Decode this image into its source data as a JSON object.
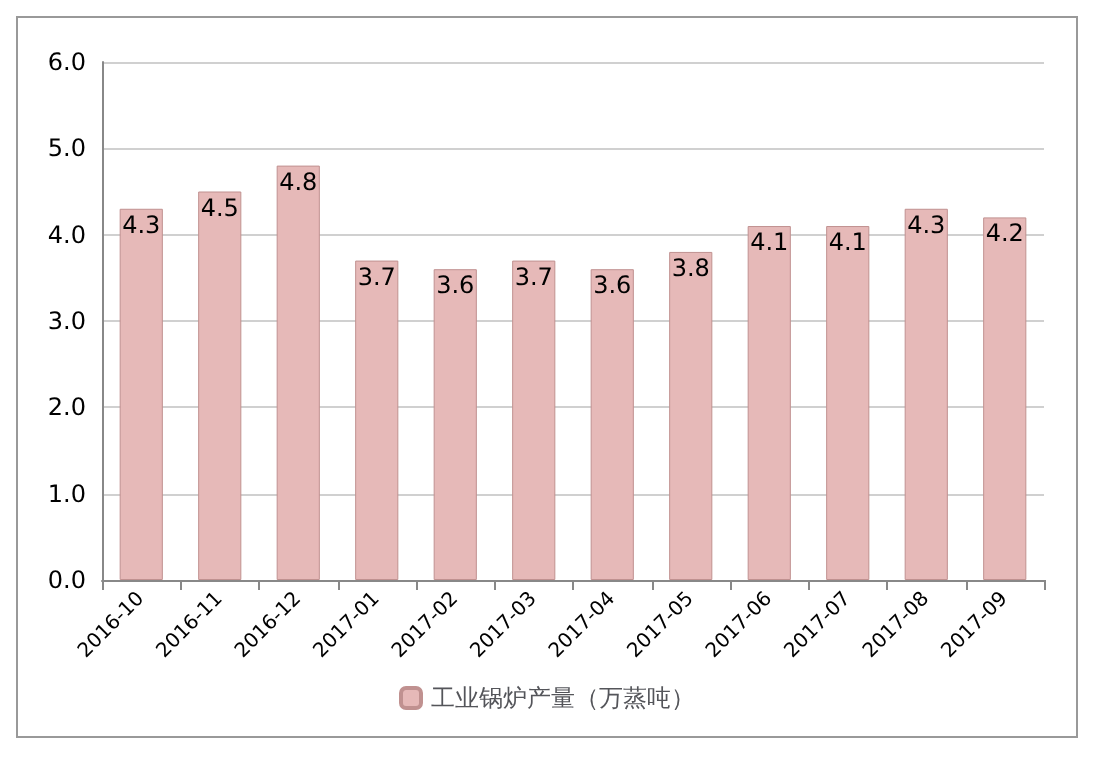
{
  "chart_data": {
    "type": "bar",
    "categories": [
      "2016-10",
      "2016-11",
      "2016-12",
      "2017-01",
      "2017-02",
      "2017-03",
      "2017-04",
      "2017-05",
      "2017-06",
      "2017-07",
      "2017-08",
      "2017-09"
    ],
    "series": [
      {
        "name": "工业锅炉产量（万蒸吨）",
        "color": "#e6b9b8",
        "values": [
          4.3,
          4.5,
          4.8,
          3.7,
          3.6,
          3.7,
          3.6,
          3.8,
          4.1,
          4.1,
          4.3,
          4.2
        ]
      }
    ],
    "ylim": [
      0,
      6
    ],
    "yticks": [
      {
        "value": 0,
        "label": "0.0"
      },
      {
        "value": 1,
        "label": "1.0"
      },
      {
        "value": 2,
        "label": "2.0"
      },
      {
        "value": 3,
        "label": "3.0"
      },
      {
        "value": 4,
        "label": "4.0"
      },
      {
        "value": 5,
        "label": "5.0"
      },
      {
        "value": 6,
        "label": "6.0"
      }
    ],
    "grid": "y",
    "legend": "bottom",
    "data_labels": true
  }
}
